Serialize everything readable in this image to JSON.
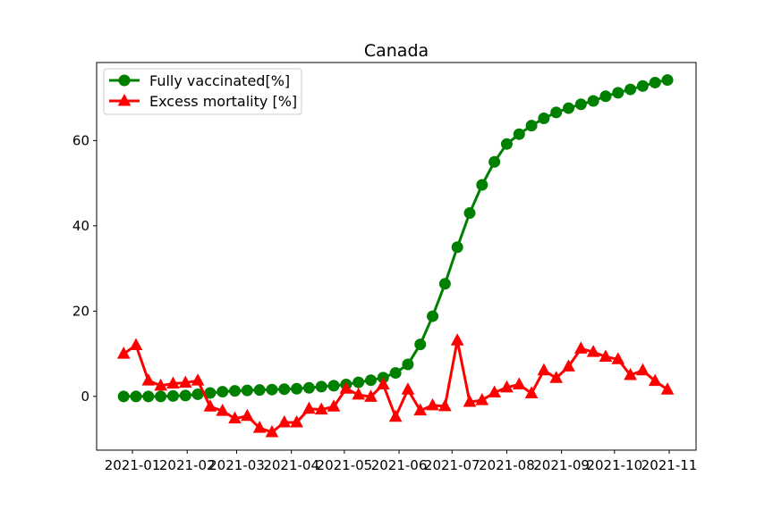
{
  "chart_data": {
    "type": "line",
    "title": "Canada",
    "x": [
      -5,
      2,
      9,
      16,
      23,
      30,
      37,
      44,
      51,
      58,
      65,
      72,
      79,
      86,
      93,
      100,
      107,
      114,
      121,
      128,
      135,
      142,
      149,
      156,
      163,
      170,
      177,
      184,
      191,
      198,
      205,
      212,
      219,
      226,
      233,
      240,
      247,
      254,
      261,
      268,
      275,
      282,
      289,
      296,
      303
    ],
    "xlim": [
      -20.3,
      319.2
    ],
    "xticks": [
      {
        "value": 0,
        "label": "2021-01"
      },
      {
        "value": 31,
        "label": "2021-02"
      },
      {
        "value": 59,
        "label": "2021-03"
      },
      {
        "value": 90,
        "label": "2021-04"
      },
      {
        "value": 120,
        "label": "2021-05"
      },
      {
        "value": 151,
        "label": "2021-06"
      },
      {
        "value": 181,
        "label": "2021-07"
      },
      {
        "value": 212,
        "label": "2021-08"
      },
      {
        "value": 243,
        "label": "2021-09"
      },
      {
        "value": 273,
        "label": "2021-10"
      },
      {
        "value": 304,
        "label": "2021-11"
      }
    ],
    "ylim": [
      -12.6,
      78.3
    ],
    "yticks": [
      0,
      20,
      40,
      60
    ],
    "grid": false,
    "legend": "upper left",
    "series": [
      {
        "name": "Fully vaccinated[%]",
        "color": "#008000",
        "marker": "circle",
        "values": [
          0,
          0,
          0,
          0,
          0.1,
          0.2,
          0.5,
          0.8,
          1.1,
          1.3,
          1.4,
          1.5,
          1.6,
          1.7,
          1.8,
          2.0,
          2.3,
          2.5,
          2.8,
          3.3,
          3.8,
          4.4,
          5.5,
          7.5,
          12.2,
          18.8,
          26.4,
          35,
          43,
          49.6,
          55,
          59.2,
          61.5,
          63.5,
          65.2,
          66.6,
          67.6,
          68.5,
          69.3,
          70.4,
          71.2,
          72,
          72.8,
          73.6,
          74.2
        ]
      },
      {
        "name": "Excess mortality [%]",
        "color": "#ff0000",
        "marker": "triangle",
        "values": [
          10,
          12,
          3.7,
          2.5,
          3,
          3.2,
          3.7,
          -2.4,
          -3.4,
          -5.2,
          -4.6,
          -7.4,
          -8.4,
          -6.1,
          -6.1,
          -2.9,
          -3.1,
          -2.4,
          1.8,
          0.4,
          -0.1,
          2.8,
          -4.8,
          1.6,
          -3.3,
          -2.1,
          -2.3,
          13.1,
          -1.3,
          -0.9,
          0.9,
          2.1,
          2.8,
          0.7,
          6.1,
          4.3,
          7,
          11.2,
          10.4,
          9.3,
          8.7,
          5,
          6.1,
          3.6,
          1.6
        ]
      }
    ]
  }
}
